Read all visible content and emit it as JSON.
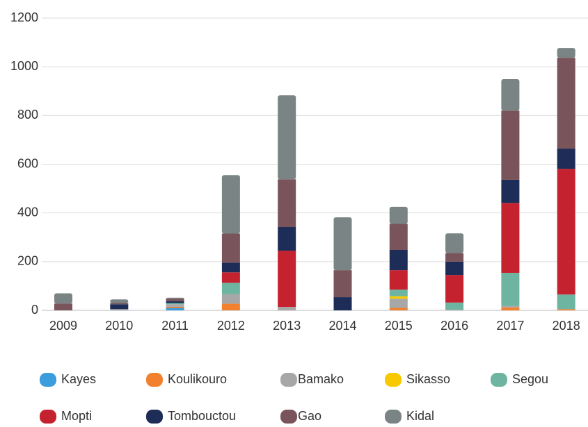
{
  "chart_data": {
    "type": "stacked_bar",
    "categories": [
      "2009",
      "2010",
      "2011",
      "2012",
      "2013",
      "2014",
      "2015",
      "2016",
      "2017",
      "2018"
    ],
    "series": [
      {
        "name": "Kayes",
        "color": "#3b9ddb",
        "values": [
          0,
          0,
          10,
          0,
          0,
          0,
          0,
          0,
          0,
          0
        ]
      },
      {
        "name": "Koulikouro",
        "color": "#f2812f",
        "values": [
          0,
          0,
          5,
          27,
          0,
          0,
          10,
          0,
          12,
          5
        ]
      },
      {
        "name": "Bamako",
        "color": "#a7a7a7",
        "values": [
          0,
          5,
          10,
          40,
          14,
          0,
          38,
          3,
          6,
          0
        ]
      },
      {
        "name": "Sikasso",
        "color": "#f8c900",
        "values": [
          0,
          0,
          0,
          0,
          0,
          0,
          10,
          0,
          0,
          0
        ]
      },
      {
        "name": "Segou",
        "color": "#6db5a0",
        "values": [
          0,
          0,
          5,
          46,
          0,
          0,
          27,
          29,
          136,
          60
        ]
      },
      {
        "name": "Mopti",
        "color": "#c4222f",
        "values": [
          0,
          0,
          0,
          43,
          231,
          0,
          80,
          113,
          287,
          516
        ]
      },
      {
        "name": "Tombouctou",
        "color": "#1e2c58",
        "values": [
          0,
          20,
          8,
          40,
          97,
          54,
          83,
          55,
          95,
          83
        ]
      },
      {
        "name": "Gao",
        "color": "#79545a",
        "values": [
          28,
          5,
          10,
          119,
          196,
          111,
          107,
          35,
          284,
          373
        ]
      },
      {
        "name": "Kidal",
        "color": "#7a8484",
        "values": [
          42,
          15,
          4,
          240,
          345,
          217,
          70,
          81,
          129,
          40
        ]
      }
    ],
    "ylim": [
      0,
      1200
    ],
    "yticks": [
      0,
      200,
      400,
      600,
      800,
      1000,
      1200
    ],
    "grid": true
  }
}
